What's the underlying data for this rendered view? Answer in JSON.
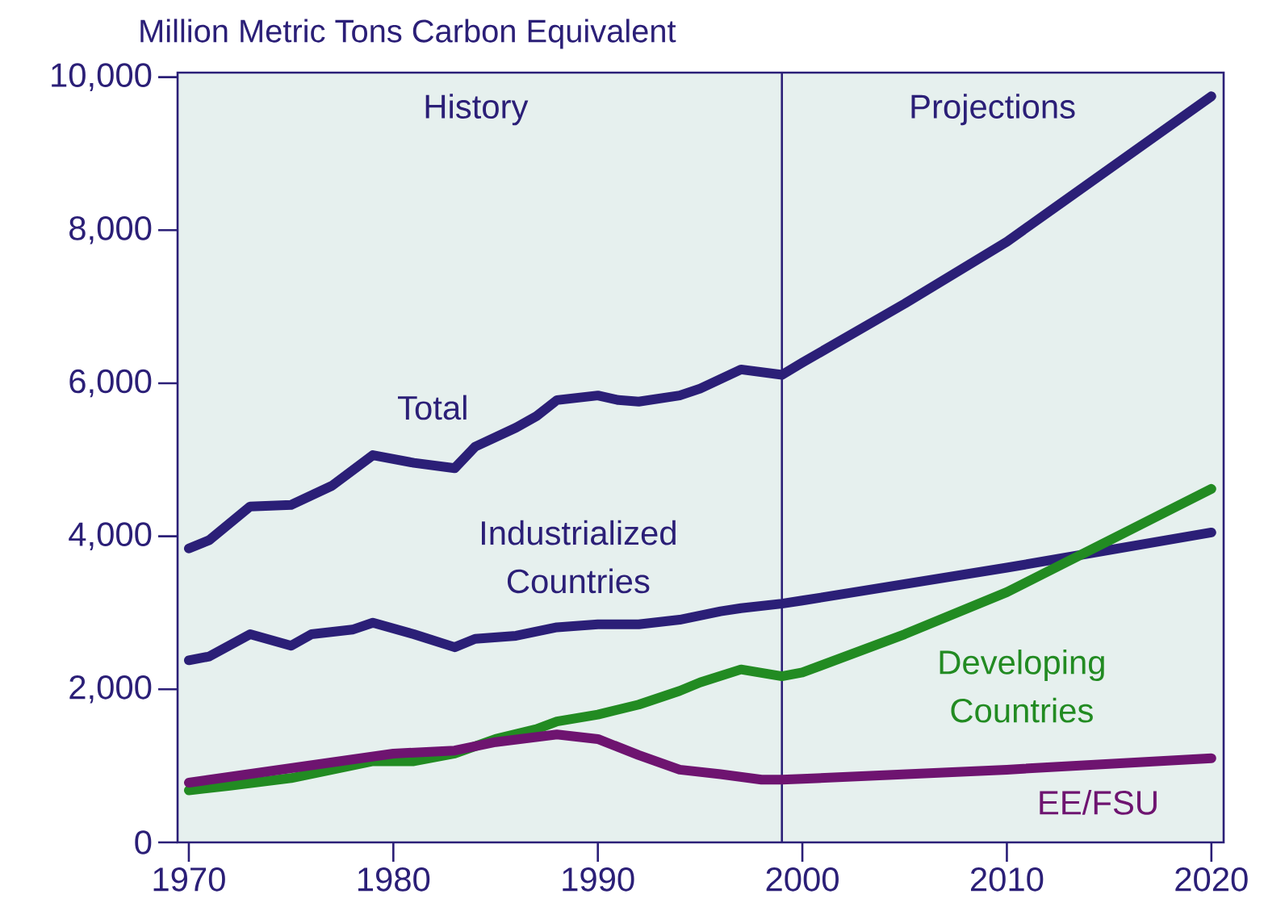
{
  "chart_data": {
    "type": "line",
    "ylabel": "Million Metric Tons Carbon Equivalent",
    "xlim": [
      1969.45,
      2020.6
    ],
    "ylim": [
      0,
      10060
    ],
    "xticks": [
      1970,
      1980,
      1990,
      2000,
      2010,
      2020
    ],
    "yticks": [
      0,
      {
        "value": 2000,
        "label": "2,000"
      },
      {
        "value": 4000,
        "label": "4,000"
      },
      {
        "value": 6000,
        "label": "6,000"
      },
      {
        "value": 8000,
        "label": "8,000"
      },
      {
        "value": 10000,
        "label": "10,000"
      }
    ],
    "grid": false,
    "legend": false,
    "marker": "none",
    "line_style": "solid",
    "ref_lines": [
      {
        "axis": "x",
        "value": 1999,
        "color": "#2b1f77"
      }
    ],
    "annotations": [
      "History",
      "Projections"
    ],
    "series": [
      {
        "name": "Total",
        "color": "#2b1f77",
        "x": [
          1970,
          1971,
          1973,
          1975,
          1977,
          1979,
          1981,
          1983,
          1984,
          1986,
          1987,
          1988,
          1990,
          1991,
          1992,
          1994,
          1995,
          1997,
          1999,
          2000,
          2005,
          2010,
          2020
        ],
        "values": [
          3840,
          3950,
          4390,
          4410,
          4660,
          5060,
          4960,
          4890,
          5170,
          5420,
          5570,
          5780,
          5840,
          5780,
          5760,
          5840,
          5930,
          6180,
          6110,
          6270,
          7040,
          7850,
          9750
        ]
      },
      {
        "name": "Industrialized Countries",
        "color": "#2b1f77",
        "x": [
          1970,
          1971,
          1973,
          1975,
          1976,
          1978,
          1979,
          1981,
          1983,
          1984,
          1986,
          1988,
          1990,
          1992,
          1994,
          1996,
          1997,
          1999,
          2000,
          2010,
          2020
        ],
        "values": [
          2380,
          2430,
          2720,
          2570,
          2720,
          2780,
          2870,
          2720,
          2550,
          2660,
          2700,
          2810,
          2850,
          2850,
          2910,
          3020,
          3060,
          3120,
          3160,
          3590,
          4050
        ]
      },
      {
        "name": "Developing Countries",
        "color": "#228b22",
        "x": [
          1970,
          1972,
          1975,
          1977,
          1979,
          1981,
          1983,
          1985,
          1987,
          1988,
          1990,
          1992,
          1994,
          1995,
          1997,
          1999,
          2000,
          2005,
          2010,
          2020
        ],
        "values": [
          680,
          740,
          840,
          950,
          1060,
          1060,
          1160,
          1350,
          1480,
          1580,
          1670,
          1800,
          1980,
          2090,
          2260,
          2170,
          2220,
          2720,
          3270,
          4620
        ]
      },
      {
        "name": "EE/FSU",
        "color": "#6e1470",
        "x": [
          1970,
          1975,
          1980,
          1983,
          1985,
          1988,
          1990,
          1992,
          1994,
          1996,
          1998,
          1999,
          2000,
          2010,
          2020
        ],
        "values": [
          780,
          970,
          1160,
          1200,
          1310,
          1410,
          1350,
          1140,
          950,
          890,
          820,
          820,
          830,
          950,
          1100
        ]
      }
    ]
  }
}
